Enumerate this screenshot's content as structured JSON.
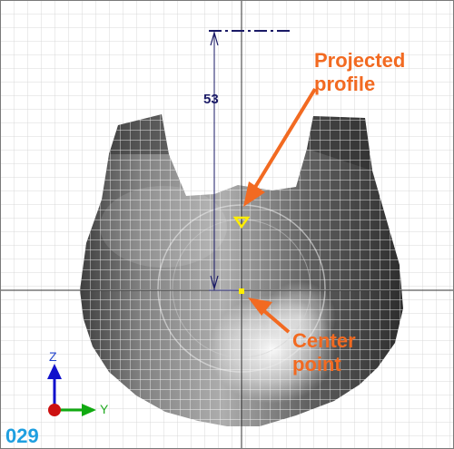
{
  "viewport": {
    "title": "",
    "dimension_value": "53",
    "callouts": {
      "projected_profile": [
        "Projected",
        "profile"
      ],
      "center_point": [
        "Center",
        "point"
      ]
    },
    "triad": {
      "z_label": "Z",
      "y_label": "Y"
    },
    "step_number": "029",
    "colors": {
      "callout": "#f26a21",
      "dimension": "#1a1a66",
      "grid": "#d6d6d6",
      "sketch_point": "#ffee00",
      "triad_z": "#1111cc",
      "triad_y": "#11aa11",
      "triad_origin": "#cc1111",
      "step_number": "#1f9fe0"
    }
  }
}
